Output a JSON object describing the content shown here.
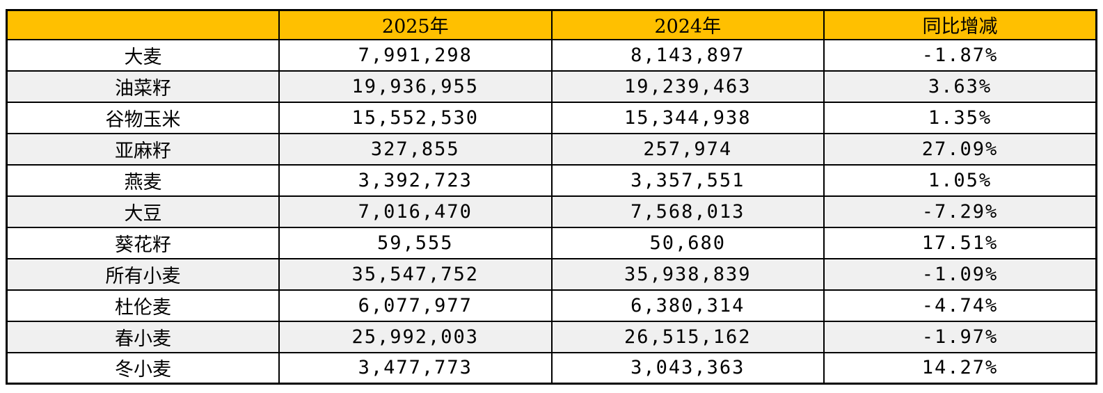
{
  "chart_data": {
    "type": "table",
    "columns": [
      "",
      "2025年",
      "2024年",
      "同比增减"
    ],
    "rows": [
      [
        "大麦",
        "7,991,298",
        "8,143,897",
        "-1.87%"
      ],
      [
        "油菜籽",
        "19,936,955",
        "19,239,463",
        "3.63%"
      ],
      [
        "谷物玉米",
        "15,552,530",
        "15,344,938",
        "1.35%"
      ],
      [
        "亚麻籽",
        "327,855",
        "257,974",
        "27.09%"
      ],
      [
        "燕麦",
        "3,392,723",
        "3,357,551",
        "1.05%"
      ],
      [
        "大豆",
        "7,016,470",
        "7,568,013",
        "-7.29%"
      ],
      [
        "葵花籽",
        "59,555",
        "50,680",
        "17.51%"
      ],
      [
        "所有小麦",
        "35,547,752",
        "35,938,839",
        "-1.09%"
      ],
      [
        "杜伦麦",
        "6,077,977",
        "6,380,314",
        "-4.74%"
      ],
      [
        "春小麦",
        "25,992,003",
        "26,515,162",
        "-1.97%"
      ],
      [
        "冬小麦",
        "3,477,773",
        "3,043,363",
        "14.27%"
      ]
    ],
    "title": "",
    "layout": {
      "header_position": "top",
      "striped_rows": true,
      "grid": true
    }
  },
  "colors": {
    "header_bg": "#FFC000",
    "stripe_bg": "#F0F0F0",
    "border": "#000000",
    "text": "#000000",
    "page_bg": "#FFFFFF"
  }
}
